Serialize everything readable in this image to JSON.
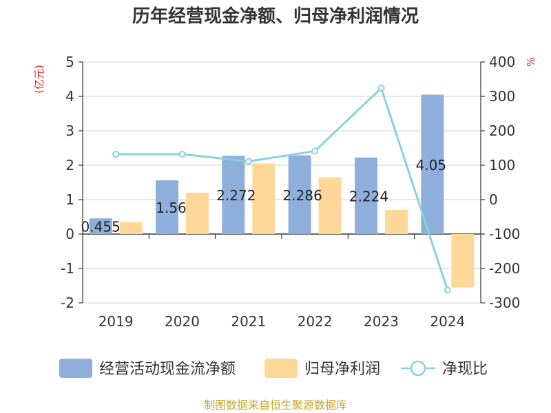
{
  "chart_data": {
    "type": "bar+line",
    "title": "历年经营现金净额、归母净利润情况",
    "left_axis_unit": "(亿元)",
    "right_axis_unit": "%",
    "categories": [
      "2019",
      "2020",
      "2021",
      "2022",
      "2023",
      "2024"
    ],
    "left_ylim": [
      -2,
      5
    ],
    "left_ticks": [
      5,
      4,
      3,
      2,
      1,
      0,
      -1,
      -2
    ],
    "right_ylim": [
      -300,
      400
    ],
    "right_ticks": [
      400,
      300,
      200,
      100,
      0,
      -100,
      -200,
      -300
    ],
    "series": [
      {
        "name": "经营活动现金流净额",
        "type": "bar",
        "axis": "left",
        "color": "#8eaedb",
        "values": [
          0.455,
          1.56,
          2.272,
          2.286,
          2.224,
          4.05
        ],
        "labels": [
          "0.455",
          "1.56",
          "2.272",
          "2.286",
          "2.224",
          "4.05"
        ]
      },
      {
        "name": "归母净利润",
        "type": "bar",
        "axis": "left",
        "color": "#ffd899",
        "values": [
          0.35,
          1.2,
          2.05,
          1.65,
          0.7,
          -1.55
        ]
      },
      {
        "name": "净现比",
        "type": "line",
        "axis": "right",
        "color": "#88d3d8",
        "values": [
          132,
          132,
          111,
          141,
          324,
          -263
        ]
      }
    ],
    "legend_position": "bottom",
    "grid": true
  },
  "source_text": "制图数据来自恒生聚源数据库"
}
